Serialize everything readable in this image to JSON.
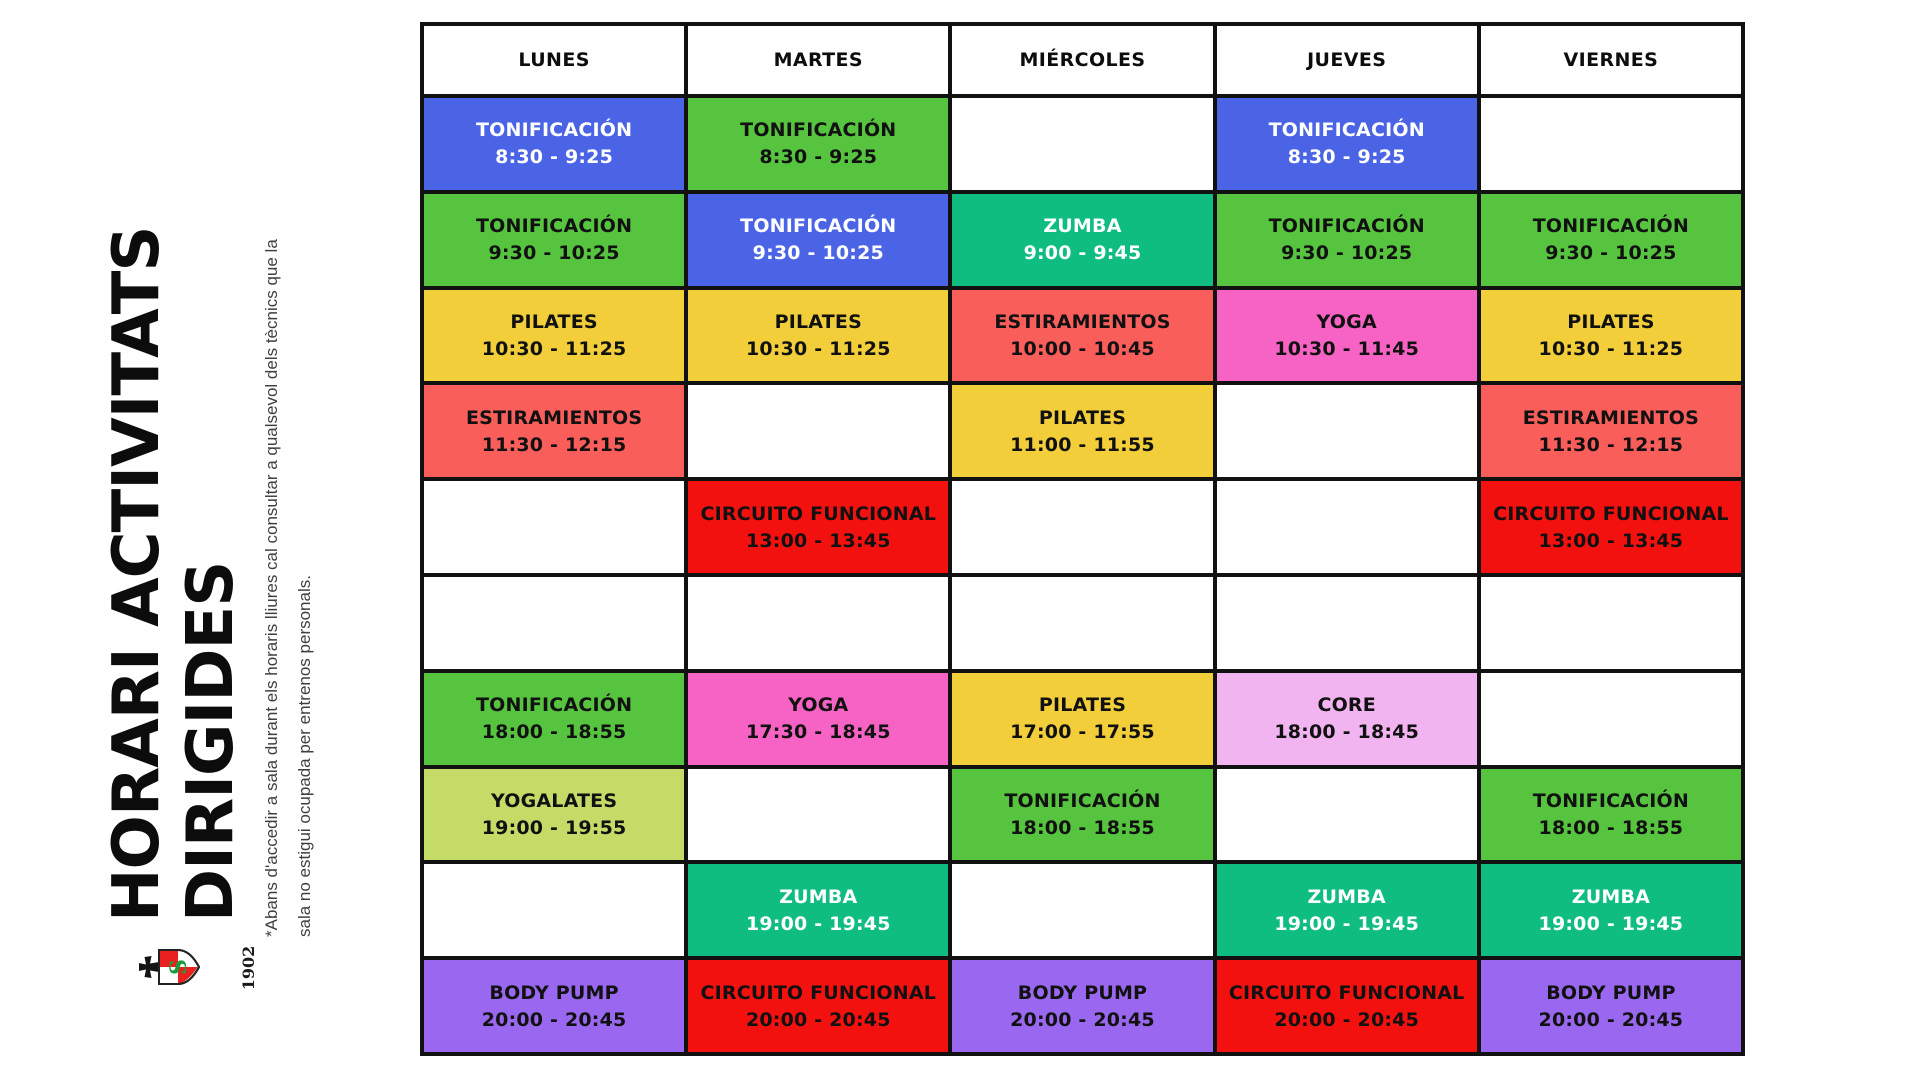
{
  "title": {
    "line1": "HORARI ACTIVITATS",
    "line2": "DIRIGIDES"
  },
  "note": {
    "line1": "*Abans d'accedir a sala durant els horaris lliures cal consultar a qualsevol dels tècnics que la",
    "line2": "sala no estigui ocupada per entrenos personals."
  },
  "logo": {
    "year": "1902",
    "crest_letter": "S"
  },
  "colors": {
    "blue": {
      "bg": "#4B64E6",
      "fg": "#FFFFFF"
    },
    "green": {
      "bg": "#56C43E",
      "fg": "#111111"
    },
    "teal": {
      "bg": "#0FBD80",
      "fg": "#FFFFFF"
    },
    "yellow": {
      "bg": "#F2CE3B",
      "fg": "#111111"
    },
    "salmon": {
      "bg": "#F95E5B",
      "fg": "#111111"
    },
    "red": {
      "bg": "#F3110F",
      "fg": "#111111"
    },
    "pink": {
      "bg": "#F763C5",
      "fg": "#111111"
    },
    "lilac": {
      "bg": "#F1B4F1",
      "fg": "#111111"
    },
    "yellowgreen": {
      "bg": "#C5DB68",
      "fg": "#111111"
    },
    "purple": {
      "bg": "#9A68F0",
      "fg": "#111111"
    }
  },
  "schedule": {
    "days": [
      "LUNES",
      "MARTES",
      "MIÉRCOLES",
      "JUEVES",
      "VIERNES"
    ],
    "rows": [
      {
        "cells": [
          {
            "activity": "TONIFICACIÓN",
            "time": "8:30 - 9:25",
            "color": "blue"
          },
          {
            "activity": "TONIFICACIÓN",
            "time": "8:30 - 9:25",
            "color": "green"
          },
          null,
          {
            "activity": "TONIFICACIÓN",
            "time": "8:30 - 9:25",
            "color": "blue"
          },
          null
        ]
      },
      {
        "cells": [
          {
            "activity": "TONIFICACIÓN",
            "time": "9:30 - 10:25",
            "color": "green"
          },
          {
            "activity": "TONIFICACIÓN",
            "time": "9:30 - 10:25",
            "color": "blue"
          },
          {
            "activity": "ZUMBA",
            "time": "9:00 - 9:45",
            "color": "teal"
          },
          {
            "activity": "TONIFICACIÓN",
            "time": "9:30 - 10:25",
            "color": "green"
          },
          {
            "activity": "TONIFICACIÓN",
            "time": "9:30 - 10:25",
            "color": "green"
          }
        ]
      },
      {
        "cells": [
          {
            "activity": "PILATES",
            "time": "10:30 - 11:25",
            "color": "yellow"
          },
          {
            "activity": "PILATES",
            "time": "10:30 - 11:25",
            "color": "yellow"
          },
          {
            "activity": "ESTIRAMIENTOS",
            "time": "10:00 - 10:45",
            "color": "salmon"
          },
          {
            "activity": "YOGA",
            "time": "10:30 - 11:45",
            "color": "pink"
          },
          {
            "activity": "PILATES",
            "time": "10:30 - 11:25",
            "color": "yellow"
          }
        ]
      },
      {
        "cells": [
          {
            "activity": "ESTIRAMIENTOS",
            "time": "11:30 - 12:15",
            "color": "salmon"
          },
          null,
          {
            "activity": "PILATES",
            "time": "11:00 - 11:55",
            "color": "yellow"
          },
          null,
          {
            "activity": "ESTIRAMIENTOS",
            "time": "11:30 - 12:15",
            "color": "salmon"
          }
        ]
      },
      {
        "cells": [
          null,
          {
            "activity": "CIRCUITO FUNCIONAL",
            "time": "13:00 - 13:45",
            "color": "red"
          },
          null,
          null,
          {
            "activity": "CIRCUITO FUNCIONAL",
            "time": "13:00 - 13:45",
            "color": "red"
          }
        ]
      },
      {
        "cells": [
          null,
          null,
          null,
          null,
          null
        ]
      },
      {
        "cells": [
          {
            "activity": "TONIFICACIÓN",
            "time": "18:00 - 18:55",
            "color": "green"
          },
          {
            "activity": "YOGA",
            "time": "17:30 - 18:45",
            "color": "pink"
          },
          {
            "activity": "PILATES",
            "time": "17:00 - 17:55",
            "color": "yellow"
          },
          {
            "activity": "CORE",
            "time": "18:00 - 18:45",
            "color": "lilac"
          },
          null
        ]
      },
      {
        "cells": [
          {
            "activity": "YOGALATES",
            "time": "19:00 - 19:55",
            "color": "yellowgreen"
          },
          null,
          {
            "activity": "TONIFICACIÓN",
            "time": "18:00 - 18:55",
            "color": "green"
          },
          null,
          {
            "activity": "TONIFICACIÓN",
            "time": "18:00 - 18:55",
            "color": "green"
          }
        ]
      },
      {
        "cells": [
          null,
          {
            "activity": "ZUMBA",
            "time": "19:00 - 19:45",
            "color": "teal"
          },
          null,
          {
            "activity": "ZUMBA",
            "time": "19:00 - 19:45",
            "color": "teal"
          },
          {
            "activity": "ZUMBA",
            "time": "19:00 - 19:45",
            "color": "teal"
          }
        ]
      },
      {
        "cells": [
          {
            "activity": "BODY PUMP",
            "time": "20:00 - 20:45",
            "color": "purple"
          },
          {
            "activity": "CIRCUITO FUNCIONAL",
            "time": "20:00 - 20:45",
            "color": "red"
          },
          {
            "activity": "BODY PUMP",
            "time": "20:00 - 20:45",
            "color": "purple"
          },
          {
            "activity": "CIRCUITO FUNCIONAL",
            "time": "20:00 - 20:45",
            "color": "red"
          },
          {
            "activity": "BODY PUMP",
            "time": "20:00 - 20:45",
            "color": "purple"
          }
        ]
      }
    ]
  }
}
